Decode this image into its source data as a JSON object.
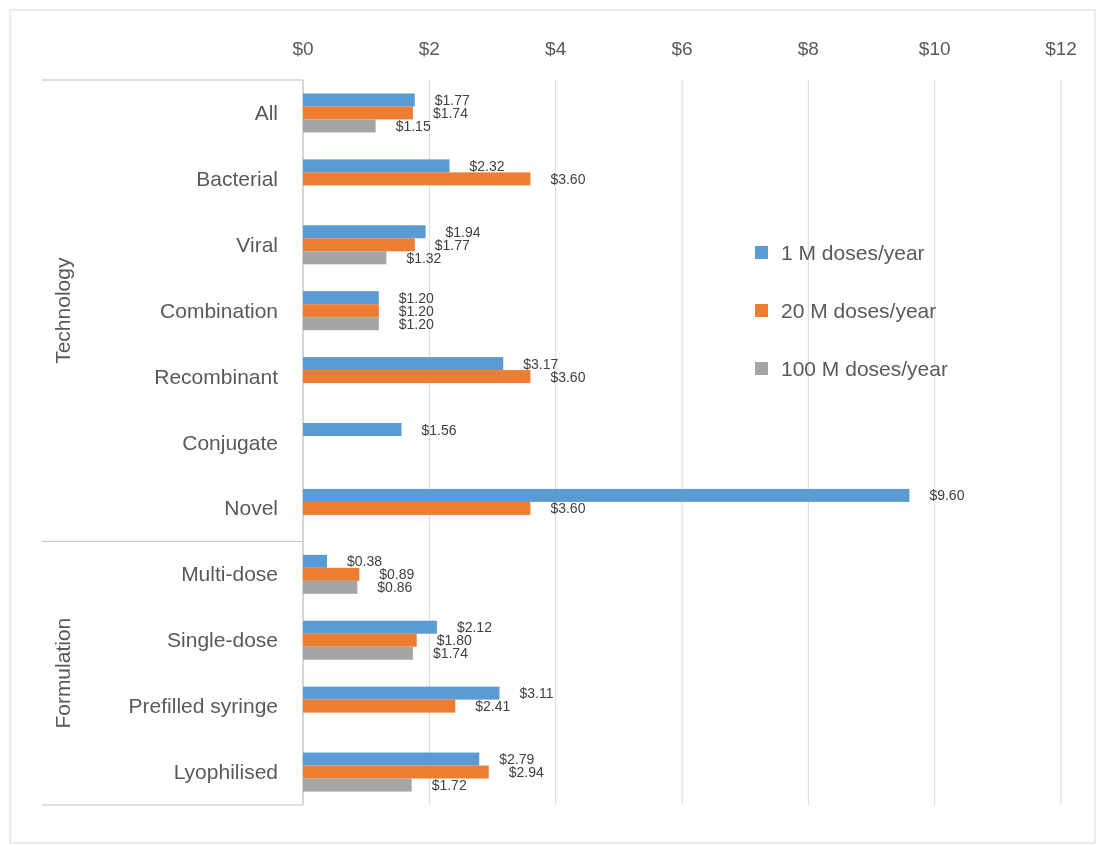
{
  "chart_data": {
    "type": "bar",
    "orientation": "horizontal",
    "categories": [
      "All",
      "Bacterial",
      "Viral",
      "Combination",
      "Recombinant",
      "Conjugate",
      "Novel",
      "Multi-dose",
      "Single-dose",
      "Prefilled syringe",
      "Lyophilised"
    ],
    "series": [
      {
        "name": "1 M doses/year",
        "color": "#5b9bd5",
        "values": [
          1.77,
          2.32,
          1.94,
          1.2,
          3.17,
          1.56,
          9.6,
          0.38,
          2.12,
          3.11,
          2.79
        ],
        "value_labels": [
          "$1.77",
          "$2.32",
          "$1.94",
          "$1.20",
          "$3.17",
          "$1.56",
          "$9.60",
          "$0.38",
          "$2.12",
          "$3.11",
          "$2.79"
        ]
      },
      {
        "name": "20 M doses/year",
        "color": "#ed7d31",
        "values": [
          1.74,
          3.6,
          1.77,
          1.2,
          3.6,
          null,
          3.6,
          0.89,
          1.8,
          2.41,
          2.94
        ],
        "value_labels": [
          "$1.74",
          "$3.60",
          "$1.77",
          "$1.20",
          "$3.60",
          null,
          "$3.60",
          "$0.89",
          "$1.80",
          "$2.41",
          "$2.94"
        ]
      },
      {
        "name": "100 M doses/year",
        "color": "#a5a5a5",
        "values": [
          1.15,
          null,
          1.32,
          1.2,
          null,
          null,
          null,
          0.86,
          1.74,
          null,
          1.72
        ],
        "value_labels": [
          "$1.15",
          null,
          "$1.32",
          "$1.20",
          null,
          null,
          null,
          "$0.86",
          "$1.74",
          null,
          "$1.72"
        ]
      }
    ],
    "xlim": [
      0,
      12
    ],
    "xticks": [
      {
        "value": 0,
        "label": "$0"
      },
      {
        "value": 2,
        "label": "$2"
      },
      {
        "value": 4,
        "label": "$4"
      },
      {
        "value": 6,
        "label": "$6"
      },
      {
        "value": 8,
        "label": "$8"
      },
      {
        "value": 10,
        "label": "$10"
      },
      {
        "value": 12,
        "label": "$12"
      }
    ],
    "grid": "x",
    "legend": "right",
    "annotations": [
      "Technology",
      "Formulation"
    ]
  }
}
